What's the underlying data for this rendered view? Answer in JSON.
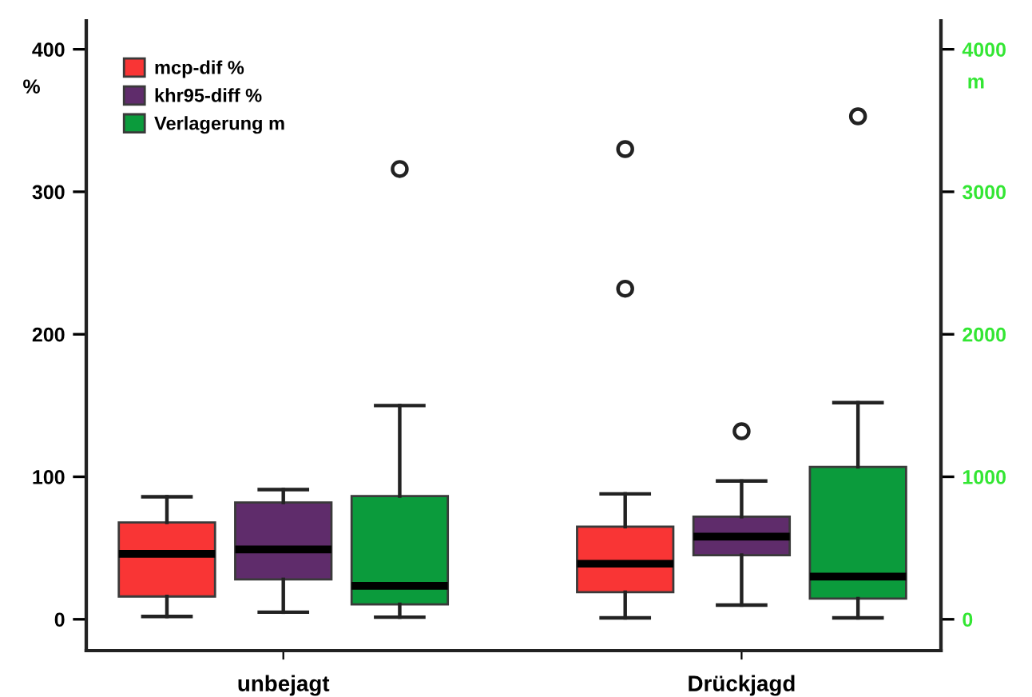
{
  "chart_data": {
    "type": "box",
    "categories": [
      "unbejagt",
      "Drückjagd"
    ],
    "ylabel": "%",
    "y2label": "m",
    "ylim": [
      -22,
      420
    ],
    "yticks": [
      0,
      100,
      200,
      300,
      400
    ],
    "y2lim": [
      -220,
      4200
    ],
    "y2ticks": [
      0,
      1000,
      2000,
      3000,
      4000
    ],
    "legend": "top left",
    "series": [
      {
        "name": "mcp-dif %",
        "color": "#f93535",
        "boxes": [
          {
            "low": 2,
            "q1": 16,
            "median": 46,
            "q3": 68,
            "high": 86
          },
          {
            "low": 1,
            "q1": 19,
            "median": 39,
            "q3": 65,
            "high": 88,
            "outliers": [
              232,
              330
            ]
          }
        ]
      },
      {
        "name": "khr95-diff %",
        "color": "#5f2c6b",
        "boxes": [
          {
            "low": 5,
            "q1": 28,
            "median": 49,
            "q3": 82,
            "high": 91
          },
          {
            "low": 10,
            "q1": 45,
            "median": 58,
            "q3": 72,
            "high": 97,
            "outliers": [
              132
            ]
          }
        ]
      },
      {
        "name": "Verlagerung m",
        "color": "#0b9b3c",
        "axis": "y2",
        "boxes": [
          {
            "low": 15,
            "q1": 105,
            "median": 235,
            "q3": 865,
            "high": 1500,
            "outliers": [
              3160
            ]
          },
          {
            "low": 10,
            "q1": 145,
            "median": 300,
            "q3": 1070,
            "high": 1520,
            "outliers": [
              3530
            ]
          }
        ]
      }
    ]
  }
}
